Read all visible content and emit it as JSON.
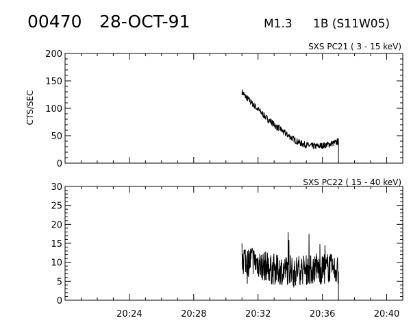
{
  "header": {
    "event_id": "00470",
    "date": "28-OCT-91",
    "goes_class": "M1.3",
    "optical": "1B (S11W05)"
  },
  "colors": {
    "background": "#ffffff",
    "ink": "#000000"
  },
  "chart_data": [
    {
      "type": "line",
      "title": "SXS PC21  (  3 - 15 keV)",
      "ylabel": "CTS/SEC",
      "xlabel": "",
      "xlim": [
        "20:20",
        "20:41"
      ],
      "ylim": [
        0,
        200
      ],
      "yticks": [
        0,
        50,
        100,
        150,
        200
      ],
      "ytick_labels": [
        "0",
        "50",
        "100",
        "150",
        "200"
      ],
      "series": [
        {
          "x": [
            "20:31.0",
            "20:31.2",
            "20:31.4",
            "20:31.6",
            "20:31.8",
            "20:32.0",
            "20:32.2",
            "20:32.4",
            "20:32.6",
            "20:32.8",
            "20:33.0",
            "20:33.2",
            "20:33.4",
            "20:33.6",
            "20:33.8",
            "20:34.0",
            "20:34.2",
            "20:34.4",
            "20:34.6",
            "20:34.8",
            "20:35.0",
            "20:35.2",
            "20:35.4",
            "20:35.6",
            "20:35.8",
            "20:36.0",
            "20:36.2",
            "20:36.4",
            "20:36.6",
            "20:36.8",
            "20:37.0"
          ],
          "values": [
            130,
            122,
            116,
            110,
            104,
            98,
            92,
            86,
            80,
            76,
            70,
            65,
            62,
            56,
            52,
            48,
            44,
            40,
            37,
            35,
            33,
            32,
            31,
            31,
            31,
            32,
            33,
            34,
            36,
            37,
            40
          ]
        }
      ]
    },
    {
      "type": "line",
      "title": "SXS PC22  ( 15 - 40 keV)",
      "ylabel": "",
      "xlabel": "",
      "xlim": [
        "20:20",
        "20:41"
      ],
      "ylim": [
        0,
        30
      ],
      "yticks": [
        0,
        5,
        10,
        15,
        20,
        25,
        30
      ],
      "ytick_labels": [
        "0",
        "5",
        "10",
        "15",
        "20",
        "25",
        "30"
      ],
      "xtick_labels": [
        "20:24",
        "20:28",
        "20:32",
        "20:36",
        "20:40"
      ],
      "series": [
        {
          "x": [
            "20:31.0",
            "20:31.2",
            "20:31.4",
            "20:31.6",
            "20:31.8",
            "20:32.0",
            "20:32.2",
            "20:32.4",
            "20:32.6",
            "20:32.8",
            "20:33.0",
            "20:33.2",
            "20:33.4",
            "20:33.6",
            "20:33.8",
            "20:34.0",
            "20:34.2",
            "20:34.4",
            "20:34.6",
            "20:34.8",
            "20:35.0",
            "20:35.2",
            "20:35.4",
            "20:35.6",
            "20:35.8",
            "20:36.0",
            "20:36.2",
            "20:36.4",
            "20:36.6",
            "20:36.8",
            "20:37.0"
          ],
          "values": [
            12,
            11,
            10,
            11,
            10,
            10,
            9,
            9,
            9,
            8,
            8,
            8,
            8,
            8,
            8,
            8,
            7,
            8,
            8,
            8,
            8,
            8,
            8,
            9,
            8,
            8,
            8,
            9,
            8,
            8,
            8
          ]
        }
      ]
    }
  ]
}
